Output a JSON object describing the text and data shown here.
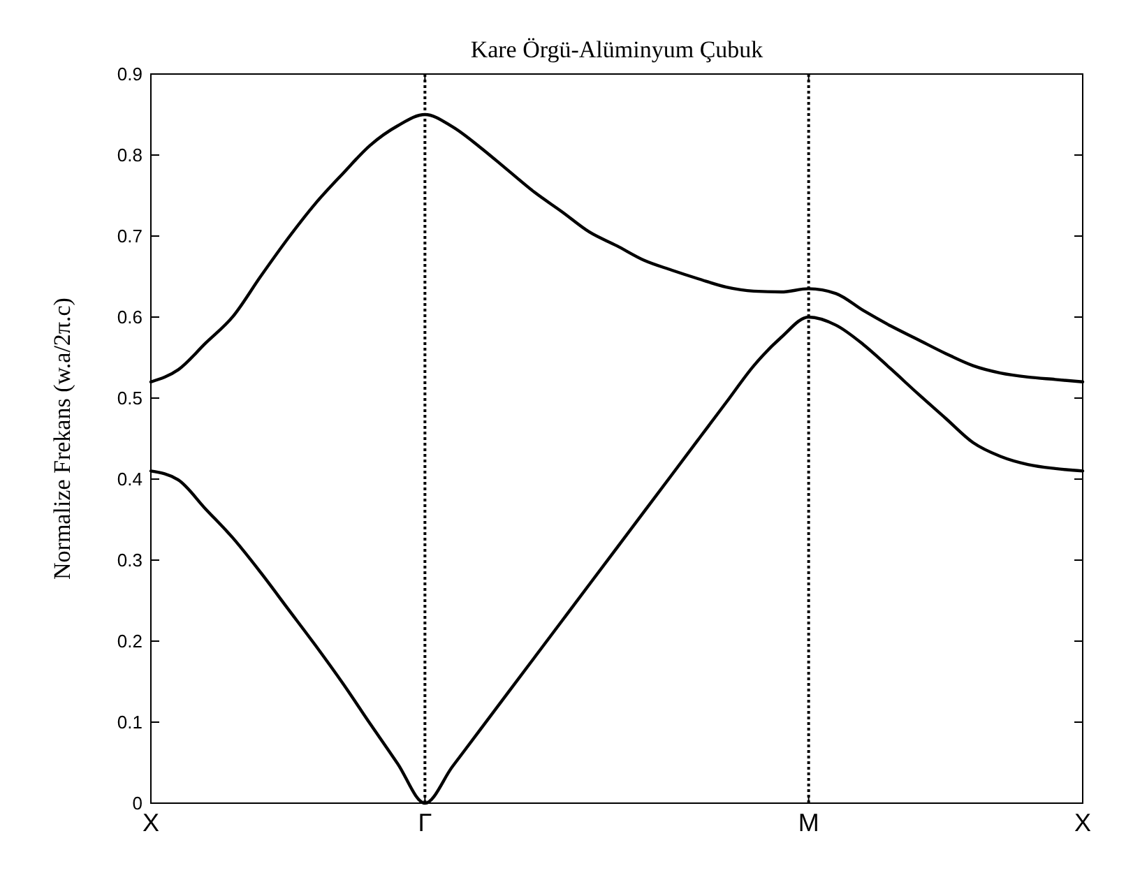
{
  "chart_data": {
    "type": "line",
    "title": "Kare Örgü-Alüminyum Çubuk",
    "ylabel": "Normalize Frekans (w.a/2π.c)",
    "categories": [
      "X",
      null,
      null,
      null,
      null,
      null,
      null,
      null,
      null,
      null,
      "Γ",
      null,
      null,
      null,
      null,
      null,
      null,
      null,
      null,
      null,
      null,
      null,
      null,
      null,
      "M",
      null,
      null,
      null,
      null,
      null,
      null,
      null,
      null,
      null,
      "X"
    ],
    "ylim": [
      0,
      0.9
    ],
    "yticks": [
      0,
      0.1,
      0.2,
      0.3,
      0.4,
      0.5,
      0.6,
      0.7,
      0.8,
      0.9
    ],
    "grid": false,
    "marker": "none",
    "line_style": "solid",
    "ref_lines": [
      {
        "axis": "x",
        "value": "Γ",
        "line_style": "dotted",
        "color": "#000000"
      },
      {
        "axis": "x",
        "value": "M",
        "line_style": "dotted",
        "color": "#000000"
      }
    ],
    "series": [
      {
        "color": "#000000",
        "values": [
          0.52,
          0.535,
          0.568,
          0.601,
          0.65,
          0.697,
          0.74,
          0.777,
          0.812,
          0.836,
          0.85,
          0.835,
          0.81,
          0.782,
          0.754,
          0.73,
          0.705,
          0.688,
          0.67,
          0.658,
          0.647,
          0.637,
          0.632,
          0.631,
          0.635,
          0.629,
          0.608,
          0.589,
          0.572,
          0.555,
          0.54,
          0.531,
          0.526,
          0.523,
          0.52
        ]
      },
      {
        "color": "#000000",
        "values": [
          0.41,
          0.399,
          0.363,
          0.327,
          0.285,
          0.24,
          0.195,
          0.148,
          0.098,
          0.049,
          0,
          0.045,
          0.09,
          0.135,
          0.18,
          0.225,
          0.27,
          0.315,
          0.36,
          0.405,
          0.45,
          0.495,
          0.54,
          0.575,
          0.6,
          0.59,
          0.566,
          0.536,
          0.505,
          0.475,
          0.445,
          0.428,
          0.418,
          0.413,
          0.41
        ]
      }
    ]
  }
}
